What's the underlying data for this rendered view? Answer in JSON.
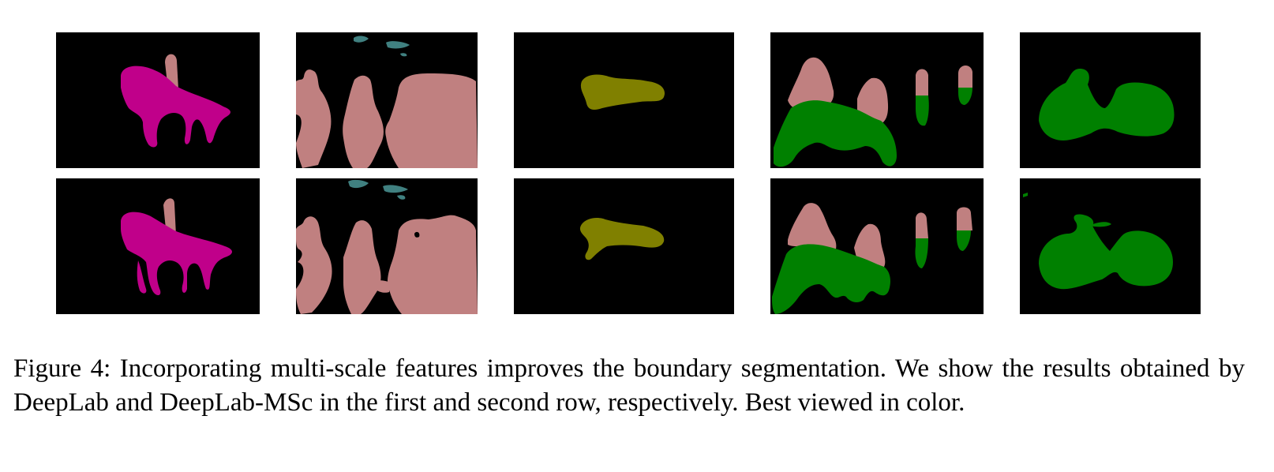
{
  "figure": {
    "caption": "Figure 4: Incorporating multi-scale features improves the boundary segmentation. We show the results obtained by DeepLab and DeepLab-MSc in the first and second row, respectively. Best viewed in color.",
    "rows": [
      {
        "method": "DeepLab",
        "tiles": [
          "horse-rider",
          "people-group",
          "single-object",
          "motorbike-riders",
          "bicycle"
        ]
      },
      {
        "method": "DeepLab-MSc",
        "tiles": [
          "horse-rider",
          "people-group",
          "single-object",
          "motorbike-riders",
          "bicycle"
        ]
      }
    ],
    "colors": {
      "background": "#000000",
      "person": "#c08080",
      "horse": "#c0008a",
      "motorbike": "#408080",
      "object": "#808000",
      "bicycle": "#008000"
    }
  }
}
